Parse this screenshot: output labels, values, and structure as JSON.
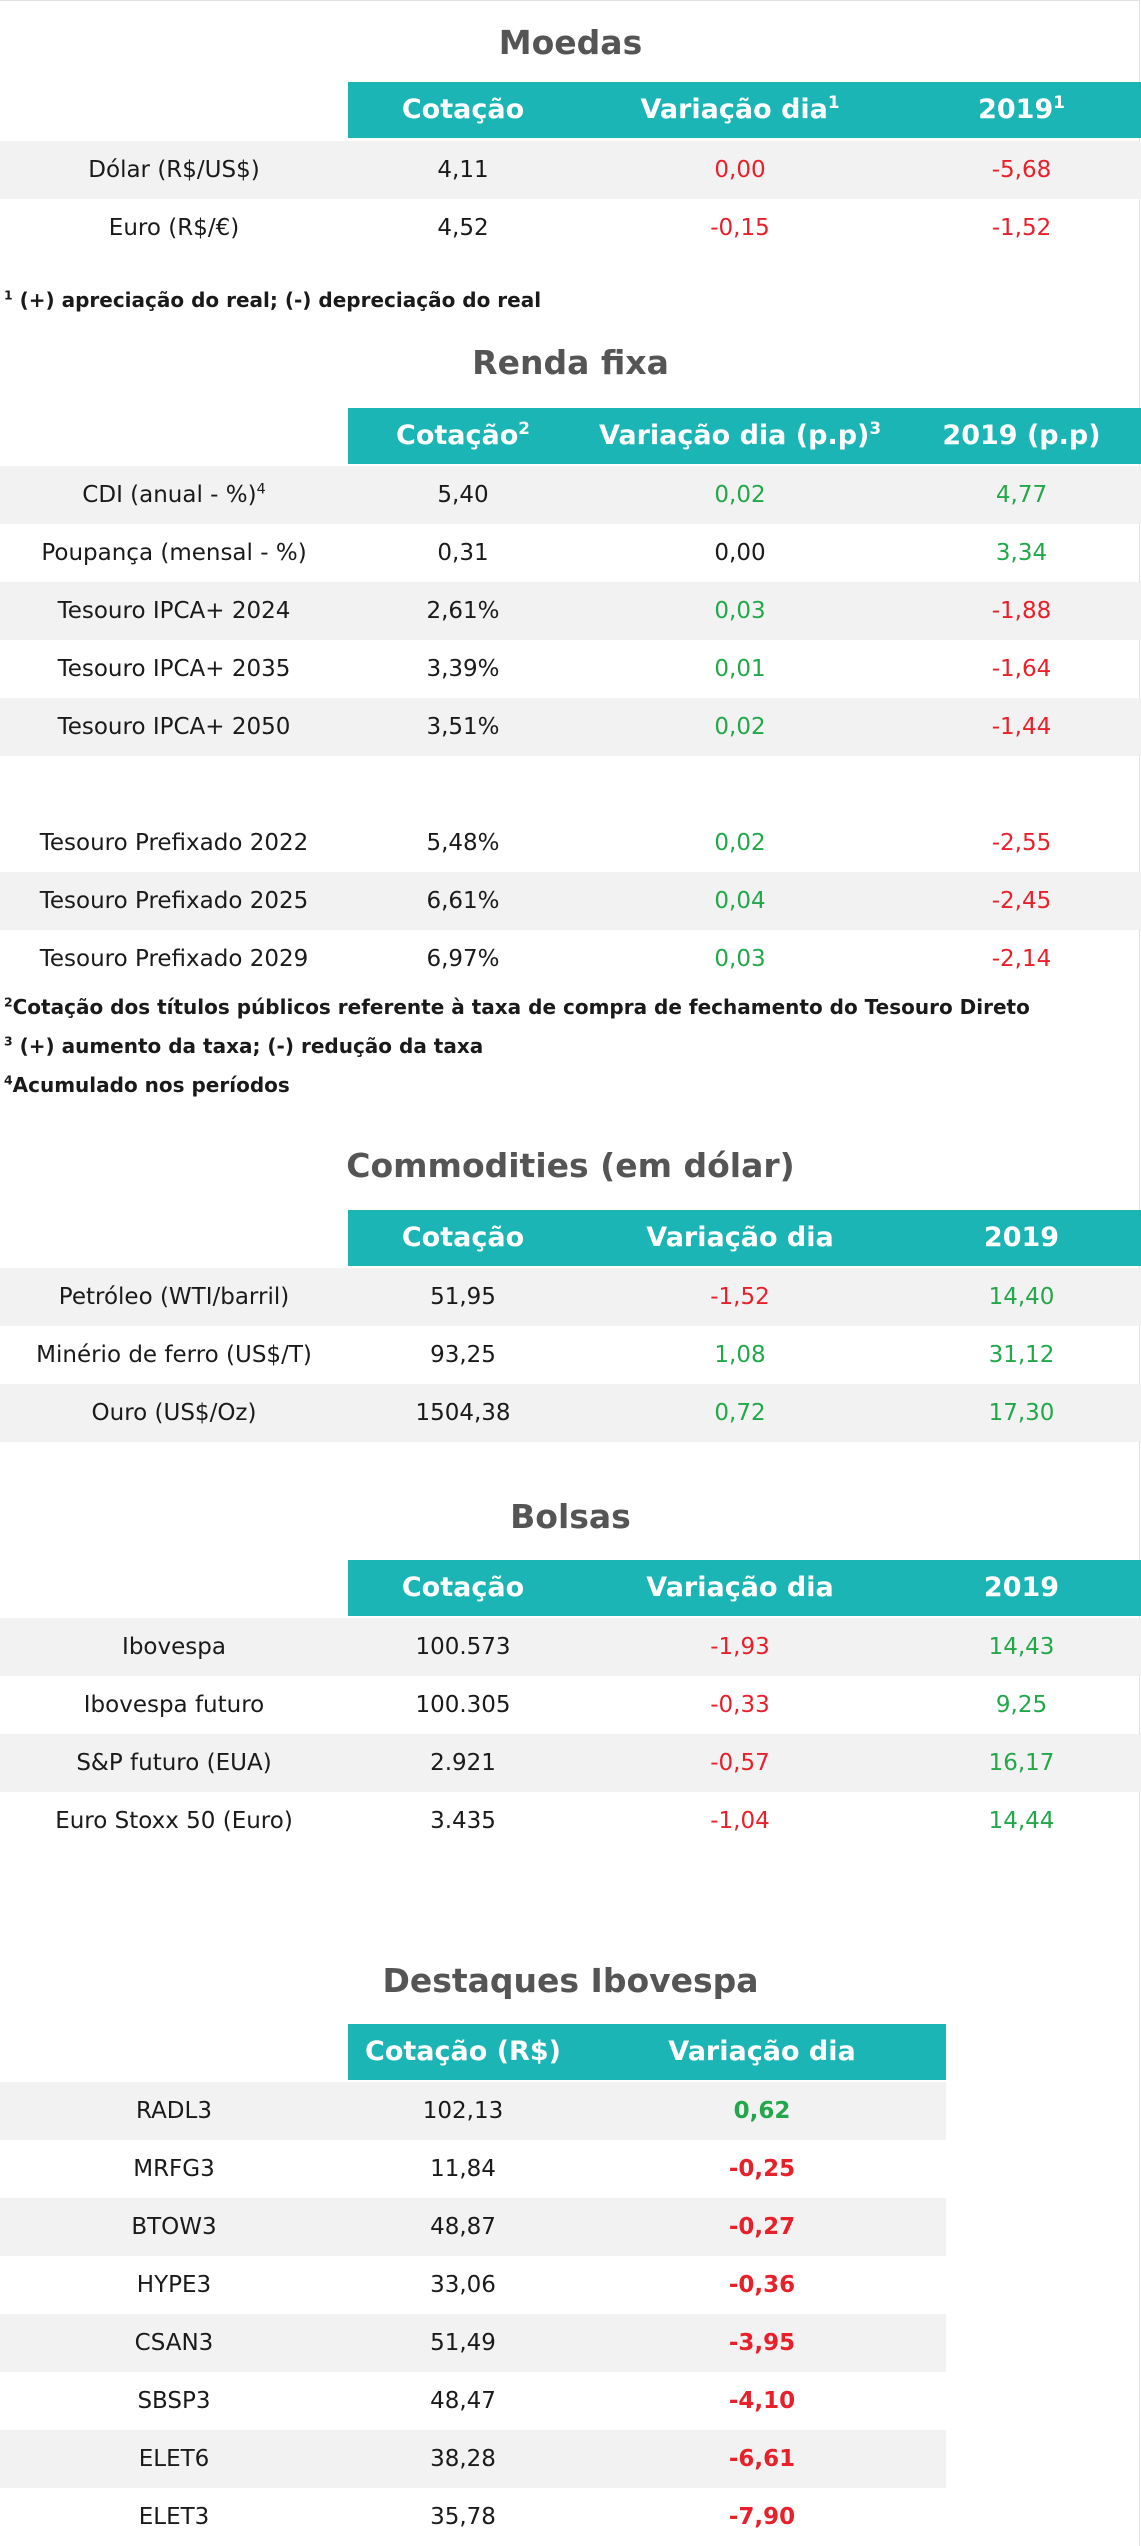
{
  "moedas": {
    "title": "Moedas",
    "headers": {
      "cotacao": "Cotação",
      "variacao": "Variação dia",
      "variacao_sup": "1",
      "ano": "2019",
      "ano_sup": "1"
    },
    "rows": [
      {
        "label": "Dólar (R$/US$)",
        "cotacao": "4,11",
        "variacao": "0,00",
        "ano": "-5,68"
      },
      {
        "label": "Euro (R$/€)",
        "cotacao": "4,52",
        "variacao": "-0,15",
        "ano": "-1,52"
      }
    ],
    "note_sup": "1",
    "note": " (+) apreciação do real; (-) depreciação do real"
  },
  "renda_fixa": {
    "title": "Renda fixa",
    "headers": {
      "cotacao": "Cotação",
      "cotacao_sup": "2",
      "variacao": "Variação dia (p.p)",
      "variacao_sup": "3",
      "ano": "2019 (p.p)"
    },
    "rows": [
      {
        "label": "CDI (anual - %)",
        "label_sup": "4",
        "cotacao": "5,40",
        "variacao": "0,02",
        "ano": "4,77"
      },
      {
        "label": "Poupança (mensal - %)",
        "cotacao": "0,31",
        "variacao": "0,00",
        "ano": "3,34"
      },
      {
        "label": "Tesouro IPCA+ 2024",
        "cotacao": "2,61%",
        "variacao": "0,03",
        "ano": "-1,88"
      },
      {
        "label": "Tesouro IPCA+ 2035",
        "cotacao": "3,39%",
        "variacao": "0,01",
        "ano": "-1,64"
      },
      {
        "label": "Tesouro IPCA+ 2050",
        "cotacao": "3,51%",
        "variacao": "0,02",
        "ano": "-1,44"
      },
      {
        "label": "Tesouro Prefixado 2022",
        "cotacao": "5,48%",
        "variacao": "0,02",
        "ano": "-2,55"
      },
      {
        "label": "Tesouro Prefixado 2025",
        "cotacao": "6,61%",
        "variacao": "0,04",
        "ano": "-2,45"
      },
      {
        "label": "Tesouro Prefixado 2029",
        "cotacao": "6,97%",
        "variacao": "0,03",
        "ano": "-2,14"
      }
    ],
    "notes": [
      {
        "sup": "2",
        "text": "Cotação dos títulos públicos referente à taxa de compra de fechamento do Tesouro Direto"
      },
      {
        "sup": "3",
        "text": " (+) aumento da taxa; (-) redução da taxa"
      },
      {
        "sup": "4",
        "text": "Acumulado nos períodos"
      }
    ]
  },
  "commodities": {
    "title": "Commodities (em dólar)",
    "headers": {
      "cotacao": "Cotação",
      "variacao": "Variação dia",
      "ano": "2019"
    },
    "rows": [
      {
        "label": "Petróleo (WTI/barril)",
        "cotacao": "51,95",
        "variacao": "-1,52",
        "ano": "14,40"
      },
      {
        "label": "Minério de ferro (US$/T)",
        "cotacao": "93,25",
        "variacao": "1,08",
        "ano": "31,12"
      },
      {
        "label": "Ouro (US$/Oz)",
        "cotacao": "1504,38",
        "variacao": "0,72",
        "ano": "17,30"
      }
    ]
  },
  "bolsas": {
    "title": "Bolsas",
    "headers": {
      "cotacao": "Cotação",
      "variacao": "Variação dia",
      "ano": "2019"
    },
    "rows": [
      {
        "label": "Ibovespa",
        "cotacao": "100.573",
        "variacao": "-1,93",
        "ano": "14,43"
      },
      {
        "label": "Ibovespa futuro",
        "cotacao": "100.305",
        "variacao": "-0,33",
        "ano": "9,25"
      },
      {
        "label": "S&P futuro (EUA)",
        "cotacao": "2.921",
        "variacao": "-0,57",
        "ano": "16,17"
      },
      {
        "label": "Euro Stoxx 50 (Euro)",
        "cotacao": "3.435",
        "variacao": "-1,04",
        "ano": "14,44"
      }
    ]
  },
  "destaques": {
    "title": "Destaques Ibovespa",
    "headers": {
      "cotacao": "Cotação (R$)",
      "variacao": "Variação dia"
    },
    "rows": [
      {
        "label": "RADL3",
        "cotacao": "102,13",
        "variacao": "0,62"
      },
      {
        "label": "MRFG3",
        "cotacao": "11,84",
        "variacao": "-0,25"
      },
      {
        "label": "BTOW3",
        "cotacao": "48,87",
        "variacao": "-0,27"
      },
      {
        "label": "HYPE3",
        "cotacao": "33,06",
        "variacao": "-0,36"
      },
      {
        "label": "CSAN3",
        "cotacao": "51,49",
        "variacao": "-3,95"
      },
      {
        "label": "SBSP3",
        "cotacao": "48,47",
        "variacao": "-4,10"
      },
      {
        "label": "ELET6",
        "cotacao": "38,28",
        "variacao": "-6,61"
      },
      {
        "label": "ELET3",
        "cotacao": "35,78",
        "variacao": "-7,90"
      }
    ]
  },
  "colors": {
    "header_bg": "#1bb5b5",
    "positive": "#22a84a",
    "negative": "#e8202a",
    "title": "#555555",
    "row_alt": "#f2f2f2"
  }
}
